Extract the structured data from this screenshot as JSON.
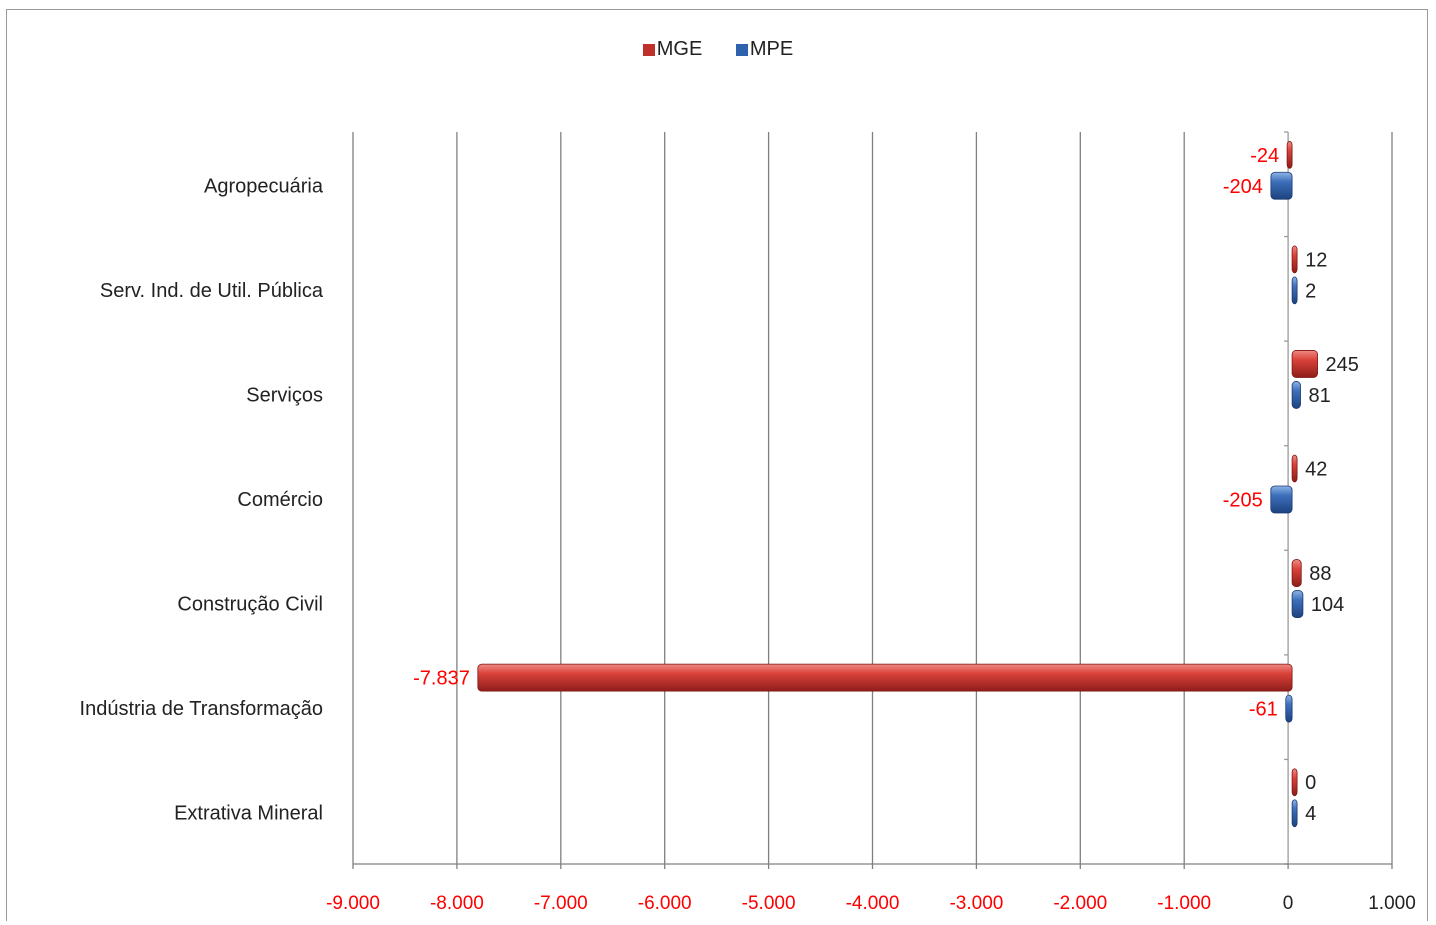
{
  "chart_data": {
    "type": "bar",
    "orientation": "horizontal",
    "categories": [
      "Agropecuária",
      "Serv. Ind. de Util.  Pública",
      "Serviços",
      "Comércio",
      "Construção Civil",
      "Indústria  de Transformação",
      "Extrativa  Mineral"
    ],
    "series": [
      {
        "name": "MGE",
        "color": "#c0302b",
        "values": [
          -24,
          12,
          245,
          42,
          88,
          -7837,
          0
        ],
        "labels": [
          "-24",
          "12",
          "245",
          "42",
          "88",
          "-7.837",
          "0"
        ]
      },
      {
        "name": "MPE",
        "color": "#2f62ad",
        "values": [
          -204,
          2,
          81,
          -205,
          104,
          -61,
          4
        ],
        "labels": [
          "-204",
          "2",
          "81",
          "-205",
          "104",
          "-61",
          "4"
        ]
      }
    ],
    "xlim": [
      -9000,
      1000
    ],
    "xticks": [
      -9000,
      -8000,
      -7000,
      -6000,
      -5000,
      -4000,
      -3000,
      -2000,
      -1000,
      0,
      1000
    ],
    "xtick_labels": [
      "-9.000",
      "-8.000",
      "-7.000",
      "-6.000",
      "-5.000",
      "-4.000",
      "-3.000",
      "-2.000",
      "-1.000",
      "0",
      "1.000"
    ],
    "negative_label_color": "#ff0000",
    "positive_label_color": "#222222",
    "grid": true,
    "legend_position": "top-center"
  }
}
